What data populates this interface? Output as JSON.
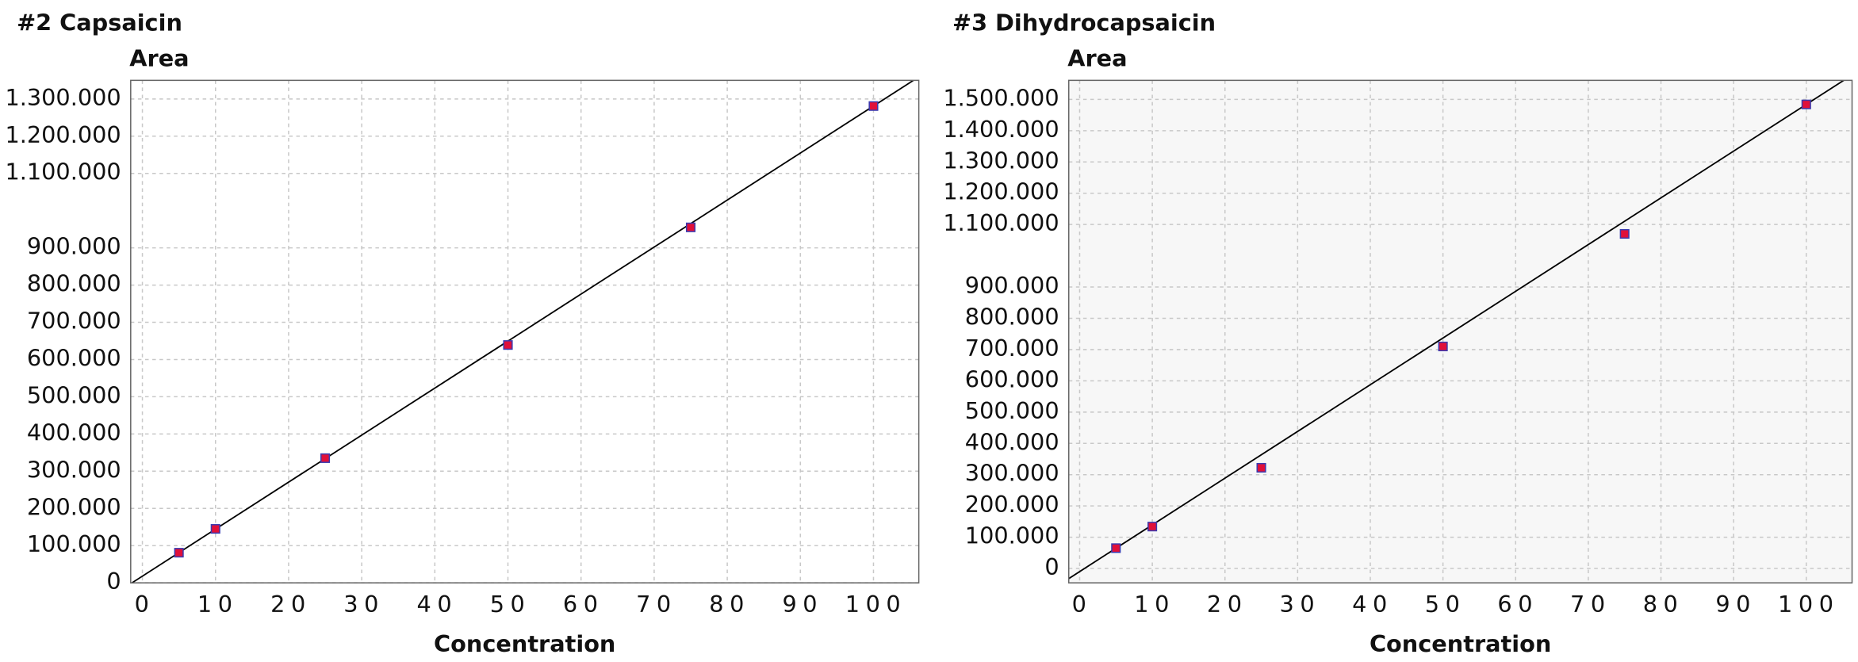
{
  "chart_data": [
    {
      "type": "scatter",
      "title": "#2 Capsaicin",
      "y_label": "Area",
      "x_label": "Concentration",
      "x": [
        5,
        10,
        25,
        50,
        75,
        100
      ],
      "values": [
        81000,
        145000,
        335000,
        639000,
        955000,
        1281000
      ],
      "color": "#e0103a",
      "edge_color": "#3a3ab0",
      "trendline": {
        "slope": 12630,
        "intercept": 18000
      },
      "trendline_color": "#000000",
      "xlim": [
        -1.6,
        106.2
      ],
      "xticks": [
        0,
        10,
        20,
        30,
        40,
        50,
        60,
        70,
        80,
        90,
        100
      ],
      "ylim": [
        0,
        1350000
      ],
      "yticks": [
        {
          "value": 0,
          "label": "0"
        },
        {
          "value": 100000,
          "label": "100.000"
        },
        {
          "value": 200000,
          "label": "200.000"
        },
        {
          "value": 300000,
          "label": "300.000"
        },
        {
          "value": 400000,
          "label": "400.000"
        },
        {
          "value": 500000,
          "label": "500.000"
        },
        {
          "value": 600000,
          "label": "600.000"
        },
        {
          "value": 700000,
          "label": "700.000"
        },
        {
          "value": 800000,
          "label": "800.000"
        },
        {
          "value": 900000,
          "label": "900.000"
        },
        {
          "value": 1100000,
          "label": "1.100.000"
        },
        {
          "value": 1200000,
          "label": "1.200.000"
        },
        {
          "value": 1300000,
          "label": "1.300.000"
        }
      ],
      "grid": true,
      "background": "#ffffff"
    },
    {
      "type": "scatter",
      "title": "#3 Dihydrocapsaicin",
      "y_label": "Area",
      "x_label": "Concentration",
      "x": [
        5,
        10,
        25,
        50,
        75,
        100
      ],
      "values": [
        65000,
        134000,
        322000,
        710000,
        1070000,
        1484000
      ],
      "color": "#e0103a",
      "edge_color": "#3a3ab0",
      "trendline": {
        "slope": 14940,
        "intercept": -10000
      },
      "trendline_color": "#000000",
      "xlim": [
        -1.5,
        106.3
      ],
      "xticks": [
        0,
        10,
        20,
        30,
        40,
        50,
        60,
        70,
        80,
        90,
        100
      ],
      "ylim": [
        -46000,
        1561000
      ],
      "yticks": [
        {
          "value": 0,
          "label": "0"
        },
        {
          "value": 100000,
          "label": "100.000"
        },
        {
          "value": 200000,
          "label": "200.000"
        },
        {
          "value": 300000,
          "label": "300.000"
        },
        {
          "value": 400000,
          "label": "400.000"
        },
        {
          "value": 500000,
          "label": "500.000"
        },
        {
          "value": 600000,
          "label": "600.000"
        },
        {
          "value": 700000,
          "label": "700.000"
        },
        {
          "value": 800000,
          "label": "800.000"
        },
        {
          "value": 900000,
          "label": "900.000"
        },
        {
          "value": 1100000,
          "label": "1.100.000"
        },
        {
          "value": 1200000,
          "label": "1.200.000"
        },
        {
          "value": 1300000,
          "label": "1.300.000"
        },
        {
          "value": 1400000,
          "label": "1.400.000"
        },
        {
          "value": 1500000,
          "label": "1.500.000"
        }
      ],
      "grid": true,
      "background": "#f7f7f7"
    }
  ]
}
